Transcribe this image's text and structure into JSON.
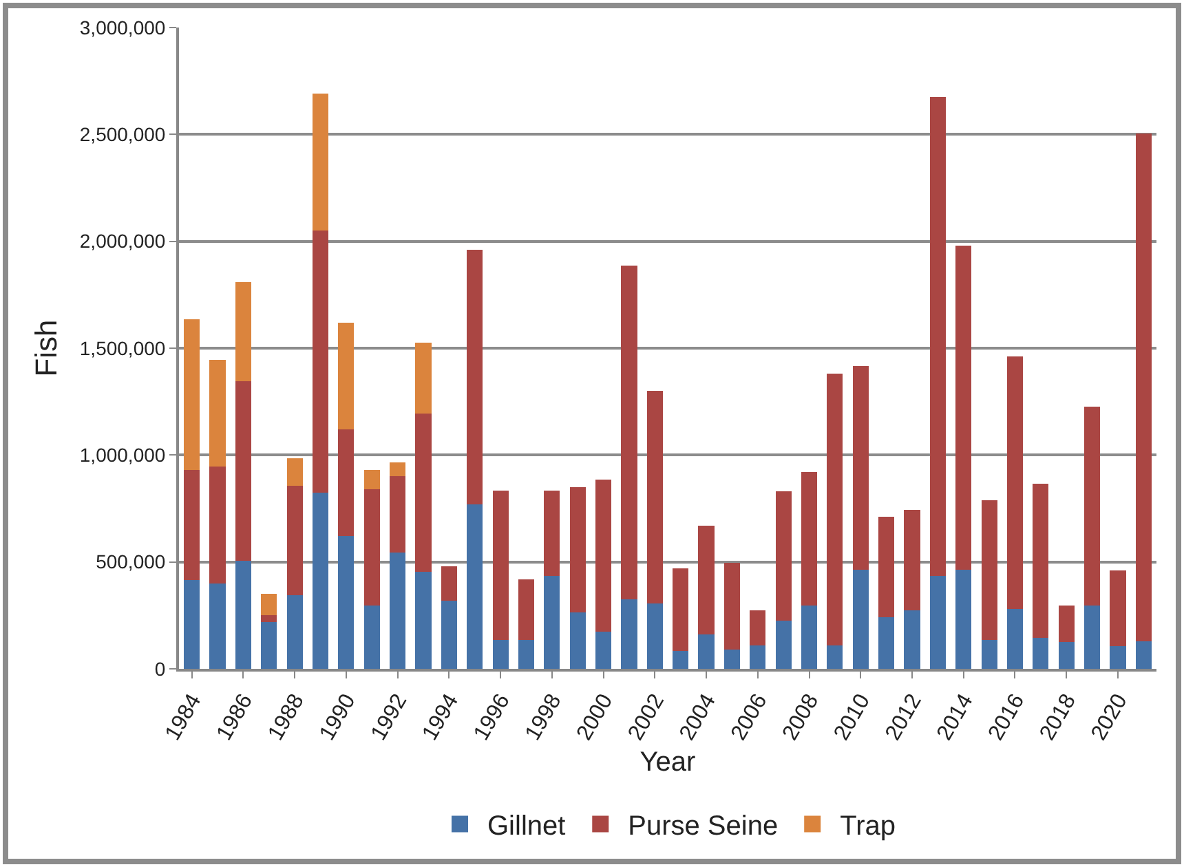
{
  "chart_data": {
    "type": "bar",
    "stacked": true,
    "xlabel": "Year",
    "ylabel": "Fish",
    "categories": [
      "1984",
      null,
      "1986",
      null,
      "1988",
      null,
      "1990",
      null,
      "1992",
      null,
      "1994",
      null,
      "1996",
      null,
      "1998",
      null,
      "2000",
      null,
      "2002",
      null,
      "2004",
      null,
      "2006",
      null,
      "2008",
      null,
      "2010",
      null,
      "2012",
      null,
      "2014",
      null,
      "2016",
      null,
      "2018",
      null,
      "2020",
      null
    ],
    "series": [
      {
        "name": "Gillnet",
        "color": "#4572a7",
        "values": [
          415000,
          400000,
          505000,
          220000,
          345000,
          825000,
          620000,
          295000,
          545000,
          455000,
          320000,
          770000,
          135000,
          135000,
          435000,
          265000,
          175000,
          325000,
          305000,
          85000,
          160000,
          90000,
          110000,
          225000,
          295000,
          110000,
          465000,
          240000,
          275000,
          435000,
          465000,
          135000,
          280000,
          145000,
          125000,
          295000,
          105000,
          130000
        ]
      },
      {
        "name": "Purse Seine",
        "color": "#aa4643",
        "values": [
          515000,
          545000,
          840000,
          30000,
          510000,
          1225000,
          500000,
          545000,
          355000,
          740000,
          160000,
          1190000,
          700000,
          285000,
          400000,
          585000,
          710000,
          1560000,
          995000,
          385000,
          510000,
          405000,
          165000,
          605000,
          625000,
          1270000,
          950000,
          470000,
          470000,
          2240000,
          1515000,
          655000,
          1180000,
          720000,
          170000,
          930000,
          355000,
          2375000
        ]
      },
      {
        "name": "Trap",
        "color": "#db843d",
        "values": [
          705000,
          500000,
          465000,
          100000,
          130000,
          640000,
          500000,
          90000,
          65000,
          330000,
          null,
          null,
          null,
          null,
          null,
          null,
          null,
          null,
          null,
          null,
          null,
          null,
          null,
          null,
          null,
          null,
          null,
          null,
          null,
          null,
          null,
          null,
          null,
          null,
          null,
          null,
          null,
          null
        ]
      }
    ],
    "ylim": [
      0,
      3000000
    ],
    "yticks": [
      0,
      {
        "value": 500000,
        "label": "500,000"
      },
      {
        "value": 1000000,
        "label": "1,000,000"
      },
      {
        "value": 1500000,
        "label": "1,500,000"
      },
      {
        "value": 2000000,
        "label": "2,000,000"
      },
      {
        "value": 2500000,
        "label": "2,500,000"
      },
      {
        "value": 3000000,
        "label": "3,000,000"
      }
    ],
    "grid": "y",
    "legend": "bottom"
  }
}
